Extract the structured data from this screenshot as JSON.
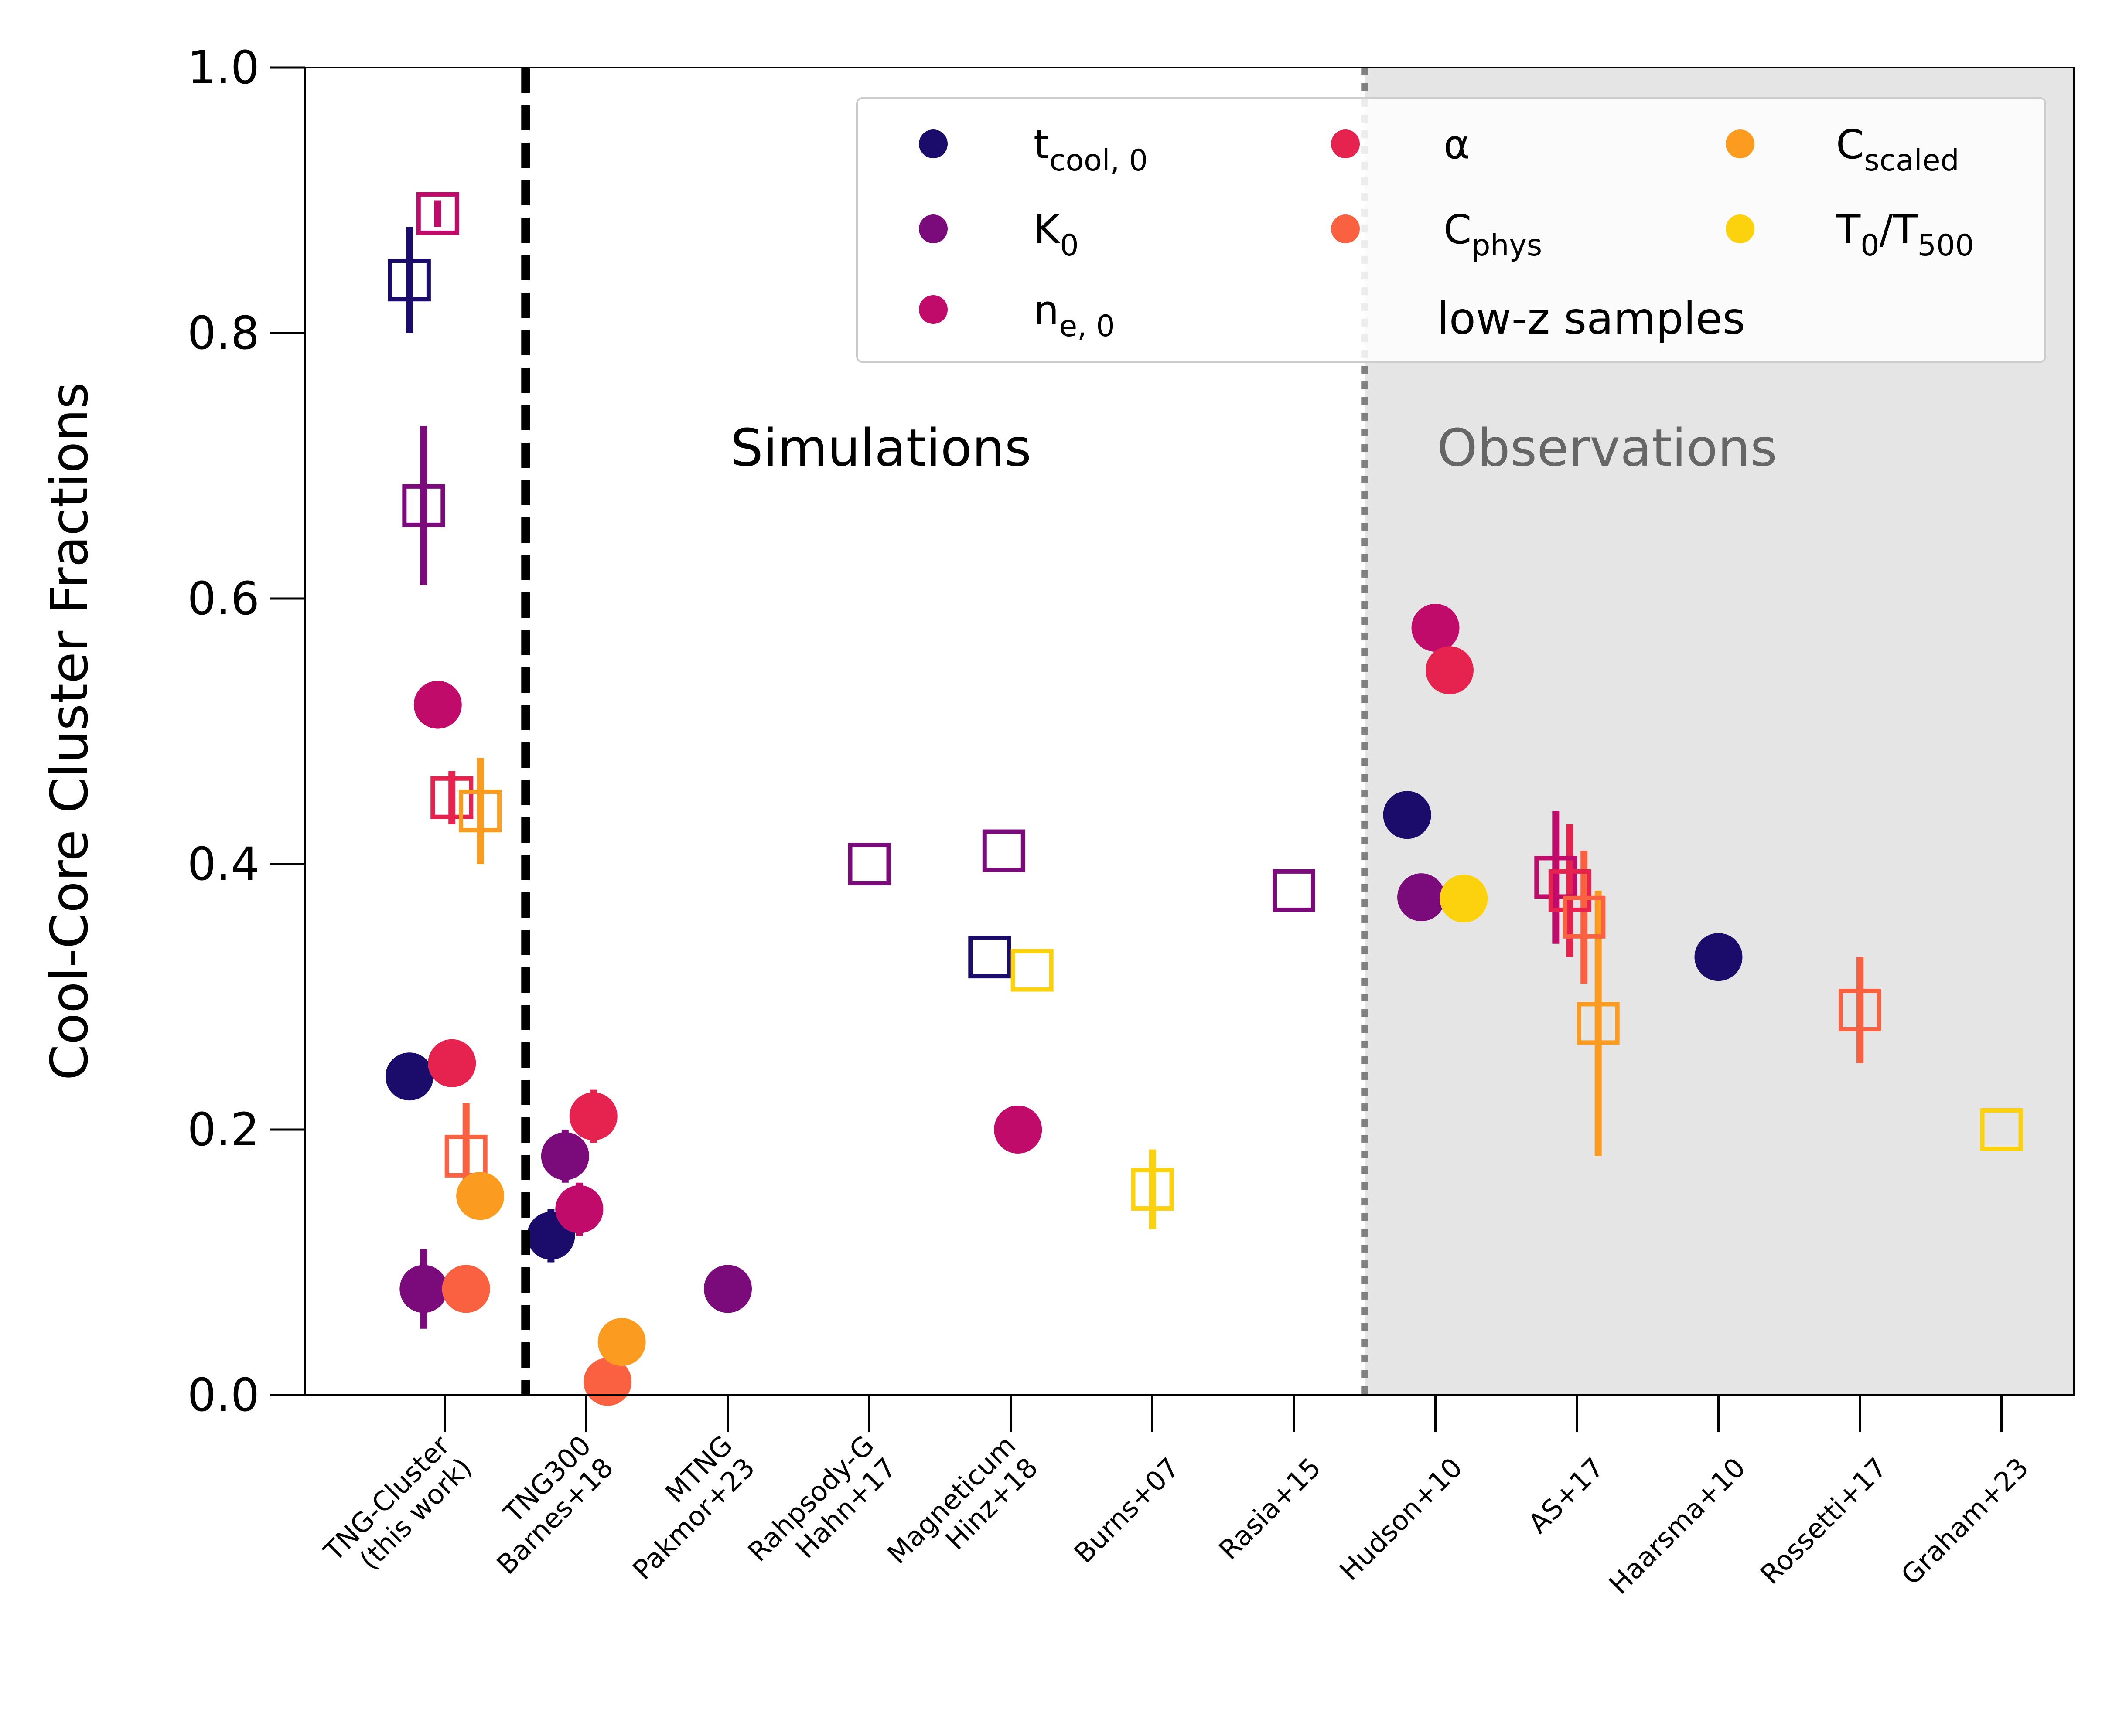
{
  "chart_data": {
    "type": "scatter",
    "ylabel": "Cool-Core Cluster Fractions",
    "ylim": [
      0,
      1
    ],
    "yticks": [
      "0.0",
      "0.2",
      "0.4",
      "0.6",
      "0.8",
      "1.0"
    ],
    "categories": [
      [
        "TNG-Cluster",
        "(this work)"
      ],
      [
        "TNG300",
        "Barnes+18"
      ],
      [
        "MTNG",
        "Pakmor+23"
      ],
      [
        "Rahpsody-G",
        "Hahn+17"
      ],
      [
        "Magneticum",
        "Hinz+18"
      ],
      [
        "Burns+07"
      ],
      [
        "Rasia+15"
      ],
      [
        "Hudson+10"
      ],
      [
        "AS+17"
      ],
      [
        "Haarsma+10"
      ],
      [
        "Rossetti+17"
      ],
      [
        "Graham+23"
      ]
    ],
    "regions": [
      {
        "label": "Simulations",
        "color": "#000000"
      },
      {
        "label": "Observations",
        "color": "#666666",
        "shade": "#e5e5e5"
      }
    ],
    "legend": {
      "placement": "top-right",
      "note": "low-z samples",
      "entries": [
        {
          "key": "tcool",
          "main": "t",
          "sub": "cool, 0",
          "color": "#1b0c6b"
        },
        {
          "key": "K0",
          "main": "K",
          "sub": "0",
          "color": "#7b0a7b"
        },
        {
          "key": "ne0",
          "main": "n",
          "sub": "e, 0",
          "color": "#c10b6b"
        },
        {
          "key": "alpha",
          "main": "α",
          "sub": "",
          "color": "#e6234f"
        },
        {
          "key": "Cphys",
          "main": "C",
          "sub": "phys",
          "color": "#fa6141"
        },
        {
          "key": "Cscaled",
          "main": "C",
          "sub": "scaled",
          "color": "#fb9c20"
        },
        {
          "key": "T0T500",
          "main": "T",
          "sub": "0",
          "main2": "/T",
          "sub2": "500",
          "color": "#fcd20f"
        }
      ]
    },
    "marker_styles": {
      "filled_circle": "low-z samples",
      "open_square": "other samples"
    },
    "points": [
      {
        "cat": 0,
        "dx": -0.25,
        "y": 0.84,
        "err": 0.04,
        "series": "tcool",
        "marker": "square"
      },
      {
        "cat": 0,
        "dx": -0.15,
        "y": 0.67,
        "err": 0.06,
        "series": "K0",
        "marker": "square"
      },
      {
        "cat": 0,
        "dx": -0.05,
        "y": 0.89,
        "err": 0.01,
        "series": "ne0",
        "marker": "square"
      },
      {
        "cat": 0,
        "dx": 0.05,
        "y": 0.45,
        "err": 0.02,
        "series": "alpha",
        "marker": "square"
      },
      {
        "cat": 0,
        "dx": 0.15,
        "y": 0.18,
        "err": 0.04,
        "series": "Cphys",
        "marker": "square"
      },
      {
        "cat": 0,
        "dx": 0.25,
        "y": 0.44,
        "err": 0.04,
        "series": "Cscaled",
        "marker": "square"
      },
      {
        "cat": 0,
        "dx": -0.25,
        "y": 0.24,
        "err": 0,
        "series": "tcool",
        "marker": "circle"
      },
      {
        "cat": 0,
        "dx": -0.15,
        "y": 0.08,
        "err": 0.03,
        "series": "K0",
        "marker": "circle"
      },
      {
        "cat": 0,
        "dx": -0.05,
        "y": 0.52,
        "err": 0,
        "series": "ne0",
        "marker": "circle"
      },
      {
        "cat": 0,
        "dx": 0.05,
        "y": 0.25,
        "err": 0,
        "series": "alpha",
        "marker": "circle"
      },
      {
        "cat": 0,
        "dx": 0.15,
        "y": 0.08,
        "err": 0,
        "series": "Cphys",
        "marker": "circle"
      },
      {
        "cat": 0,
        "dx": 0.25,
        "y": 0.15,
        "err": 0,
        "series": "Cscaled",
        "marker": "circle"
      },
      {
        "cat": 1,
        "dx": -0.25,
        "y": 0.12,
        "err": 0.02,
        "series": "tcool",
        "marker": "circle"
      },
      {
        "cat": 1,
        "dx": -0.15,
        "y": 0.18,
        "err": 0.02,
        "series": "K0",
        "marker": "circle"
      },
      {
        "cat": 1,
        "dx": -0.05,
        "y": 0.14,
        "err": 0.02,
        "series": "ne0",
        "marker": "circle"
      },
      {
        "cat": 1,
        "dx": 0.05,
        "y": 0.21,
        "err": 0.02,
        "series": "alpha",
        "marker": "circle"
      },
      {
        "cat": 1,
        "dx": 0.15,
        "y": 0.01,
        "err": 0,
        "series": "Cphys",
        "marker": "circle"
      },
      {
        "cat": 1,
        "dx": 0.25,
        "y": 0.04,
        "err": 0,
        "series": "Cscaled",
        "marker": "circle"
      },
      {
        "cat": 2,
        "dx": 0,
        "y": 0.08,
        "err": 0,
        "series": "K0",
        "marker": "circle"
      },
      {
        "cat": 3,
        "dx": 0,
        "y": 0.4,
        "err": 0,
        "series": "K0",
        "marker": "square"
      },
      {
        "cat": 4,
        "dx": -0.15,
        "y": 0.33,
        "err": 0,
        "series": "tcool",
        "marker": "square"
      },
      {
        "cat": 4,
        "dx": -0.05,
        "y": 0.41,
        "err": 0,
        "series": "K0",
        "marker": "square"
      },
      {
        "cat": 4,
        "dx": 0.05,
        "y": 0.2,
        "err": 0,
        "series": "ne0",
        "marker": "circle"
      },
      {
        "cat": 4,
        "dx": 0.15,
        "y": 0.32,
        "err": 0,
        "series": "T0T500",
        "marker": "square"
      },
      {
        "cat": 5,
        "dx": 0,
        "y": 0.155,
        "err": 0.03,
        "series": "T0T500",
        "marker": "square"
      },
      {
        "cat": 6,
        "dx": 0,
        "y": 0.38,
        "err": 0,
        "series": "K0",
        "marker": "square"
      },
      {
        "cat": 7,
        "dx": -0.2,
        "y": 0.437,
        "err": 0,
        "series": "tcool",
        "marker": "circle"
      },
      {
        "cat": 7,
        "dx": -0.1,
        "y": 0.375,
        "err": 0,
        "series": "K0",
        "marker": "circle"
      },
      {
        "cat": 7,
        "dx": 0,
        "y": 0.578,
        "err": 0,
        "series": "ne0",
        "marker": "circle"
      },
      {
        "cat": 7,
        "dx": 0.1,
        "y": 0.546,
        "err": 0,
        "series": "alpha",
        "marker": "circle"
      },
      {
        "cat": 7,
        "dx": 0.2,
        "y": 0.374,
        "err": 0,
        "series": "T0T500",
        "marker": "circle"
      },
      {
        "cat": 8,
        "dx": -0.15,
        "y": 0.39,
        "err": 0.05,
        "series": "ne0",
        "marker": "square"
      },
      {
        "cat": 8,
        "dx": -0.05,
        "y": 0.38,
        "err": 0.05,
        "series": "alpha",
        "marker": "square"
      },
      {
        "cat": 8,
        "dx": 0.05,
        "y": 0.36,
        "err": 0.05,
        "series": "Cphys",
        "marker": "square"
      },
      {
        "cat": 8,
        "dx": 0.15,
        "y": 0.28,
        "err": 0.1,
        "series": "Cscaled",
        "marker": "square"
      },
      {
        "cat": 9,
        "dx": 0,
        "y": 0.33,
        "err": 0,
        "series": "tcool",
        "marker": "circle"
      },
      {
        "cat": 10,
        "dx": 0,
        "y": 0.29,
        "err": 0.04,
        "series": "Cphys",
        "marker": "square"
      },
      {
        "cat": 11,
        "dx": 0,
        "y": 0.2,
        "err": 0,
        "series": "T0T500",
        "marker": "square"
      }
    ]
  }
}
